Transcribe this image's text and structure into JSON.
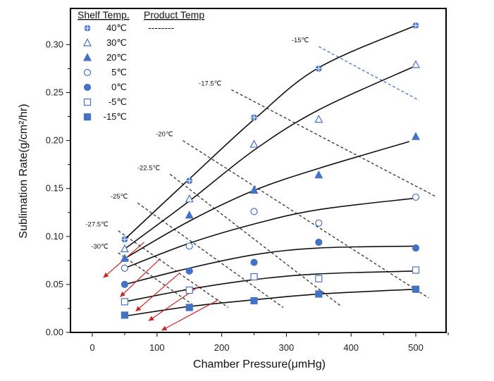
{
  "chart_data": {
    "type": "scatter",
    "xlabel": "Chamber Pressure(μmHg)",
    "ylabel": "Sublimation Rate(g/cm²/hr)",
    "xlim": [
      -30,
      550
    ],
    "ylim": [
      0,
      0.335
    ],
    "x_ticks": [
      0,
      100,
      200,
      300,
      400,
      500
    ],
    "y_ticks": [
      0.0,
      0.05,
      0.1,
      0.15,
      0.2,
      0.25,
      0.3
    ],
    "y_tick_labels": [
      "0.00",
      "0.05",
      "0.10",
      "0.15",
      "0.20",
      "0.25",
      "0.30"
    ],
    "legend": {
      "header_shelf": "Shelf Temp.",
      "header_product": "Product Temp",
      "product_line_sample": "--------"
    },
    "series": [
      {
        "name": "40℃",
        "marker": "plus-circle",
        "color": "#4472c4",
        "x": [
          50,
          150,
          250,
          350,
          500
        ],
        "y": [
          0.097,
          0.158,
          0.224,
          0.275,
          0.32
        ]
      },
      {
        "name": "30℃",
        "marker": "triangle-open",
        "color": "#4472c4",
        "x": [
          50,
          150,
          250,
          350,
          500
        ],
        "y": [
          0.087,
          0.139,
          0.196,
          0.222,
          0.279
        ]
      },
      {
        "name": "20℃",
        "marker": "triangle-filled",
        "color": "#4472c4",
        "x": [
          50,
          150,
          250,
          350,
          500
        ],
        "y": [
          0.077,
          0.122,
          0.148,
          0.164,
          0.204
        ]
      },
      {
        "name": "5℃",
        "marker": "circle-open",
        "color": "#4472c4",
        "x": [
          50,
          150,
          250,
          350,
          500
        ],
        "y": [
          0.067,
          0.09,
          0.126,
          0.114,
          0.141
        ]
      },
      {
        "name": "0℃",
        "marker": "circle-filled",
        "color": "#4472c4",
        "x": [
          50,
          150,
          250,
          350,
          500
        ],
        "y": [
          0.05,
          0.064,
          0.073,
          0.094,
          0.088
        ]
      },
      {
        "name": "-5℃",
        "marker": "square-open",
        "color": "#4472c4",
        "x": [
          50,
          150,
          250,
          350,
          500
        ],
        "y": [
          0.032,
          0.044,
          0.058,
          0.056,
          0.065
        ]
      },
      {
        "name": "-15℃",
        "marker": "square-filled",
        "color": "#4472c4",
        "x": [
          50,
          150,
          250,
          350,
          500
        ],
        "y": [
          0.018,
          0.026,
          0.033,
          0.04,
          0.045
        ]
      }
    ],
    "fit_curves": [
      {
        "series": "40℃",
        "points": [
          [
            50,
            0.097
          ],
          [
            150,
            0.16
          ],
          [
            250,
            0.222
          ],
          [
            350,
            0.276
          ],
          [
            500,
            0.32
          ]
        ]
      },
      {
        "series": "30℃",
        "points": [
          [
            50,
            0.087
          ],
          [
            150,
            0.137
          ],
          [
            250,
            0.19
          ],
          [
            350,
            0.232
          ],
          [
            500,
            0.278
          ]
        ]
      },
      {
        "series": "20℃",
        "points": [
          [
            50,
            0.077
          ],
          [
            150,
            0.116
          ],
          [
            250,
            0.148
          ],
          [
            350,
            0.171
          ],
          [
            490,
            0.199
          ]
        ]
      },
      {
        "series": "5℃",
        "points": [
          [
            50,
            0.067
          ],
          [
            150,
            0.093
          ],
          [
            250,
            0.113
          ],
          [
            350,
            0.128
          ],
          [
            500,
            0.14
          ]
        ]
      },
      {
        "series": "0℃",
        "points": [
          [
            50,
            0.05
          ],
          [
            150,
            0.067
          ],
          [
            250,
            0.081
          ],
          [
            350,
            0.088
          ],
          [
            500,
            0.09
          ]
        ]
      },
      {
        "series": "-5℃",
        "points": [
          [
            50,
            0.032
          ],
          [
            150,
            0.045
          ],
          [
            250,
            0.055
          ],
          [
            350,
            0.061
          ],
          [
            500,
            0.064
          ]
        ]
      },
      {
        "series": "-15℃",
        "points": [
          [
            50,
            0.017
          ],
          [
            150,
            0.027
          ],
          [
            250,
            0.034
          ],
          [
            350,
            0.04
          ],
          [
            500,
            0.045
          ]
        ]
      }
    ],
    "isotherms": [
      {
        "label": "-15℃",
        "color": "#4472c4",
        "from": [
          350,
          0.298
        ],
        "to": [
          505,
          0.242
        ]
      },
      {
        "label": "-17.5℃",
        "color": "#333333",
        "from": [
          215,
          0.253
        ],
        "to": [
          530,
          0.142
        ]
      },
      {
        "label": "-20℃",
        "color": "#333333",
        "from": [
          140,
          0.2
        ],
        "to": [
          520,
          0.036
        ]
      },
      {
        "label": "-22.5℃",
        "color": "#333333",
        "from": [
          120,
          0.165
        ],
        "to": [
          385,
          0.027
        ]
      },
      {
        "label": "-25℃",
        "color": "#333333",
        "from": [
          70,
          0.135
        ],
        "to": [
          295,
          0.026
        ]
      },
      {
        "label": "-27.5℃",
        "color": "#333333",
        "from": [
          40,
          0.106
        ],
        "to": [
          210,
          0.026
        ]
      },
      {
        "label": "-30℃",
        "color": "#333333",
        "from": [
          40,
          0.083
        ],
        "to": [
          155,
          0.029
        ]
      }
    ],
    "red_arrows": [
      {
        "from": [
          80,
          0.094
        ],
        "to": [
          17,
          0.057
        ]
      },
      {
        "from": [
          105,
          0.077
        ],
        "to": [
          43,
          0.037
        ]
      },
      {
        "from": [
          135,
          0.062
        ],
        "to": [
          67,
          0.022
        ]
      },
      {
        "from": [
          165,
          0.048
        ],
        "to": [
          87,
          0.012
        ]
      },
      {
        "from": [
          195,
          0.034
        ],
        "to": [
          107,
          0.002
        ]
      }
    ]
  }
}
